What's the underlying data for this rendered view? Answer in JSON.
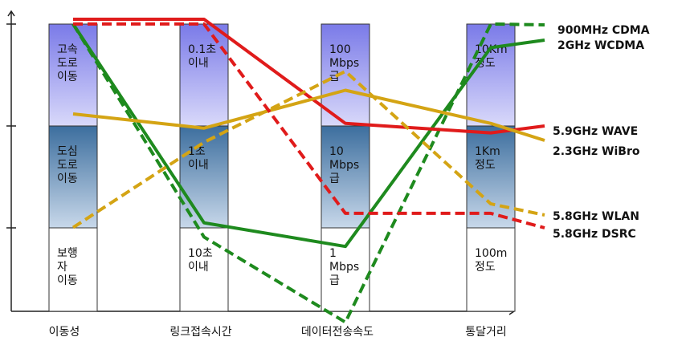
{
  "chart_data": {
    "type": "line",
    "categories": [
      "이동성",
      "링크접속시간",
      "데이터전송속도",
      "통달거리"
    ],
    "levels": [
      [
        "보행\n자\n이동",
        "10초\n이내",
        "1\nMbps\n급",
        "100m\n정도"
      ],
      [
        "도심\n도로\n이동",
        "1초\n이내",
        "10\nMbps\n급",
        "1Km\n정도"
      ],
      [
        "고속\n도로\n이동",
        "0.1초\n이내",
        "100\nMbps\n급",
        "10Km\n정도"
      ]
    ],
    "ylim": [
      0,
      3
    ],
    "series": [
      {
        "name": "900MHz CDMA",
        "color": "#1e8a1e",
        "dash": true,
        "values": [
          2.95,
          0.7,
          -0.2,
          2.95
        ]
      },
      {
        "name": "2GHz WCDMA",
        "color": "#1e8a1e",
        "dash": false,
        "values": [
          2.95,
          0.85,
          0.6,
          2.7
        ]
      },
      {
        "name": "5.9GHz WAVE",
        "color": "#e01b1b",
        "dash": false,
        "values": [
          3.0,
          3.0,
          1.9,
          1.8
        ]
      },
      {
        "name": "2.3GHz WiBro",
        "color": "#d4a414",
        "dash": false,
        "values": [
          2.0,
          1.85,
          2.25,
          1.9
        ]
      },
      {
        "name": "5.8GHz WLAN",
        "color": "#d4a414",
        "dash": true,
        "values": [
          0.8,
          1.7,
          2.45,
          1.05
        ]
      },
      {
        "name": "5.8GHz DSRC",
        "color": "#e01b1b",
        "dash": true,
        "values": [
          2.95,
          2.95,
          0.95,
          0.95
        ]
      }
    ],
    "legend_placement": "right",
    "grid": false
  }
}
